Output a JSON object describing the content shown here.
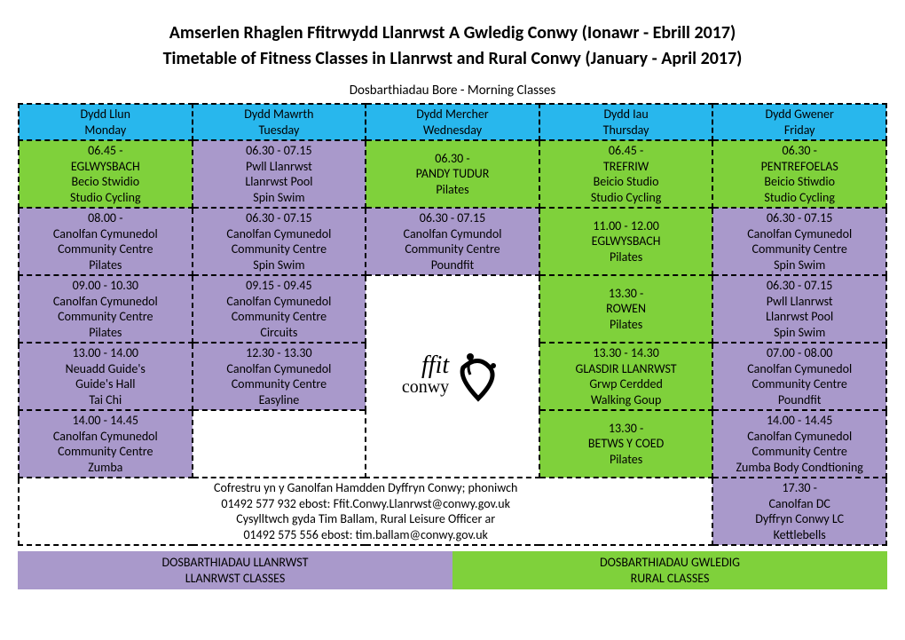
{
  "title_cy": "Amserlen Rhaglen Ffitrwydd Llanrwst A Gwledig Conwy  (Ionawr - Ebrill 2017)",
  "title_en": "Timetable of Fitness Classes in Llanrwst and Rural Conwy (January - April 2017)",
  "section_label": "Dosbarthiadau Bore - Morning Classes",
  "colors": {
    "header_blue": "#28b7ed",
    "green": "#7fd13b",
    "purple": "#a999cb",
    "white": "#ffffff"
  },
  "days": [
    {
      "cy": "Dydd Llun",
      "en": "Monday"
    },
    {
      "cy": "Dydd Mawrth",
      "en": "Tuesday"
    },
    {
      "cy": "Dydd Mercher",
      "en": "Wednesday"
    },
    {
      "cy": "Dydd Iau",
      "en": "Thursday"
    },
    {
      "cy": "Dydd Gwener",
      "en": "Friday"
    }
  ],
  "grid": [
    [
      {
        "color": "green",
        "lines": [
          "06.45 -",
          "EGLWYSBACH",
          "Becio Stwidio",
          "Studio Cycling"
        ]
      },
      {
        "color": "purple",
        "lines": [
          "06.30 - 07.15",
          "Pwll Llanrwst",
          "Llanrwst Pool",
          "Spin Swim"
        ]
      },
      {
        "color": "green",
        "lines": [
          "06.30 -",
          "PANDY TUDUR",
          "Pilates"
        ]
      },
      {
        "color": "green",
        "lines": [
          "06.45 -",
          "TREFRIW",
          "Beicio Studio",
          "Studio Cycling"
        ]
      },
      {
        "color": "green",
        "lines": [
          "06.30 -",
          "PENTREFOELAS",
          "Beicio Stiwdio",
          "Studio Cycling"
        ]
      }
    ],
    [
      {
        "color": "purple",
        "lines": [
          "08.00 -",
          "Canolfan Cymunedol",
          "Community Centre",
          "Pilates"
        ]
      },
      {
        "color": "purple",
        "lines": [
          "06.30 - 07.15",
          "Canolfan Cymunedol",
          "Community Centre",
          "Spin Swim"
        ]
      },
      {
        "color": "purple",
        "lines": [
          "06.30 - 07.15",
          "Canolfan Cymundol",
          "Community Centre",
          "Poundfit"
        ]
      },
      {
        "color": "green",
        "lines": [
          "11.00 - 12.00",
          "EGLWYSBACH",
          "Pilates"
        ]
      },
      {
        "color": "purple",
        "lines": [
          "06.30 - 07.15",
          "Canolfan Cymunedol",
          "Community Centre",
          "Spin Swim"
        ]
      }
    ],
    [
      {
        "color": "purple",
        "lines": [
          "09.00 - 10.30",
          "Canolfan Cymunedol",
          "Community Centre",
          "Pilates"
        ]
      },
      {
        "color": "purple",
        "lines": [
          "09.15 - 09.45",
          "Canolfan Cymunedol",
          "Community Centre",
          "Circuits"
        ]
      },
      {
        "color": "logo",
        "rowspan": 3
      },
      {
        "color": "green",
        "lines": [
          "13.30 -",
          "ROWEN",
          "Pilates"
        ]
      },
      {
        "color": "purple",
        "lines": [
          "06.30 - 07.15",
          "Pwll Llanrwst",
          "Llanrwst Pool",
          "Spin Swim"
        ]
      }
    ],
    [
      {
        "color": "purple",
        "lines": [
          "13.00 - 14.00",
          "Neuadd Guide's",
          "Guide's Hall",
          "Tai Chi"
        ]
      },
      {
        "color": "purple",
        "lines": [
          "12.30 - 13.30",
          "Canolfan Cymunedol",
          "Community Centre",
          "Easyline"
        ]
      },
      {
        "color": "green",
        "lines": [
          "13.30 - 14.30",
          "GLASDIR LLANRWST",
          "Grwp Cerdded",
          "Walking Goup"
        ]
      },
      {
        "color": "purple",
        "lines": [
          "07.00 - 08.00",
          "Canolfan Cymunedol",
          "Community Centre",
          "Poundfit"
        ]
      }
    ],
    [
      {
        "color": "purple",
        "lines": [
          "14.00 - 14.45",
          "Canolfan Cymunedol",
          "Community Centre",
          "Zumba"
        ]
      },
      {
        "color": "white",
        "lines": [
          "",
          "",
          "",
          ""
        ]
      },
      {
        "color": "green",
        "lines": [
          "13.30 -",
          "BETWS Y COED",
          "Pilates"
        ]
      },
      {
        "color": "purple",
        "lines": [
          "14.00 - 14.45",
          "Canolfan Cymunedol",
          "Community Centre",
          "Zumba Body Condtioning"
        ]
      }
    ],
    [
      {
        "color": "white",
        "colspan": 4,
        "lines": [
          "Cofrestru yn y Ganolfan Hamdden Dyffryn Conwy; phoniwch",
          "01492 577 932 ebost: Ffit.Conwy.Llanrwst@conwy.gov.uk",
          "Cysylltwch gyda Tim Ballam, Rural Leisure Officer ar",
          "01492 575 556 ebost: tim.ballam@conwy.gov.uk"
        ]
      },
      {
        "color": "purple",
        "lines": [
          "17.30 -",
          "Canolfan DC",
          "Dyffryn Conwy LC",
          "Kettlebells"
        ]
      }
    ]
  ],
  "legend": {
    "purple": {
      "cy": "DOSBARTHIADAU LLANRWST",
      "en": "LLANRWST CLASSES"
    },
    "green": {
      "cy": "DOSBARTHIADAU GWLEDIG",
      "en": "RURAL CLASSES"
    }
  },
  "logo": {
    "top": "ffit",
    "bottom": "conwy"
  }
}
